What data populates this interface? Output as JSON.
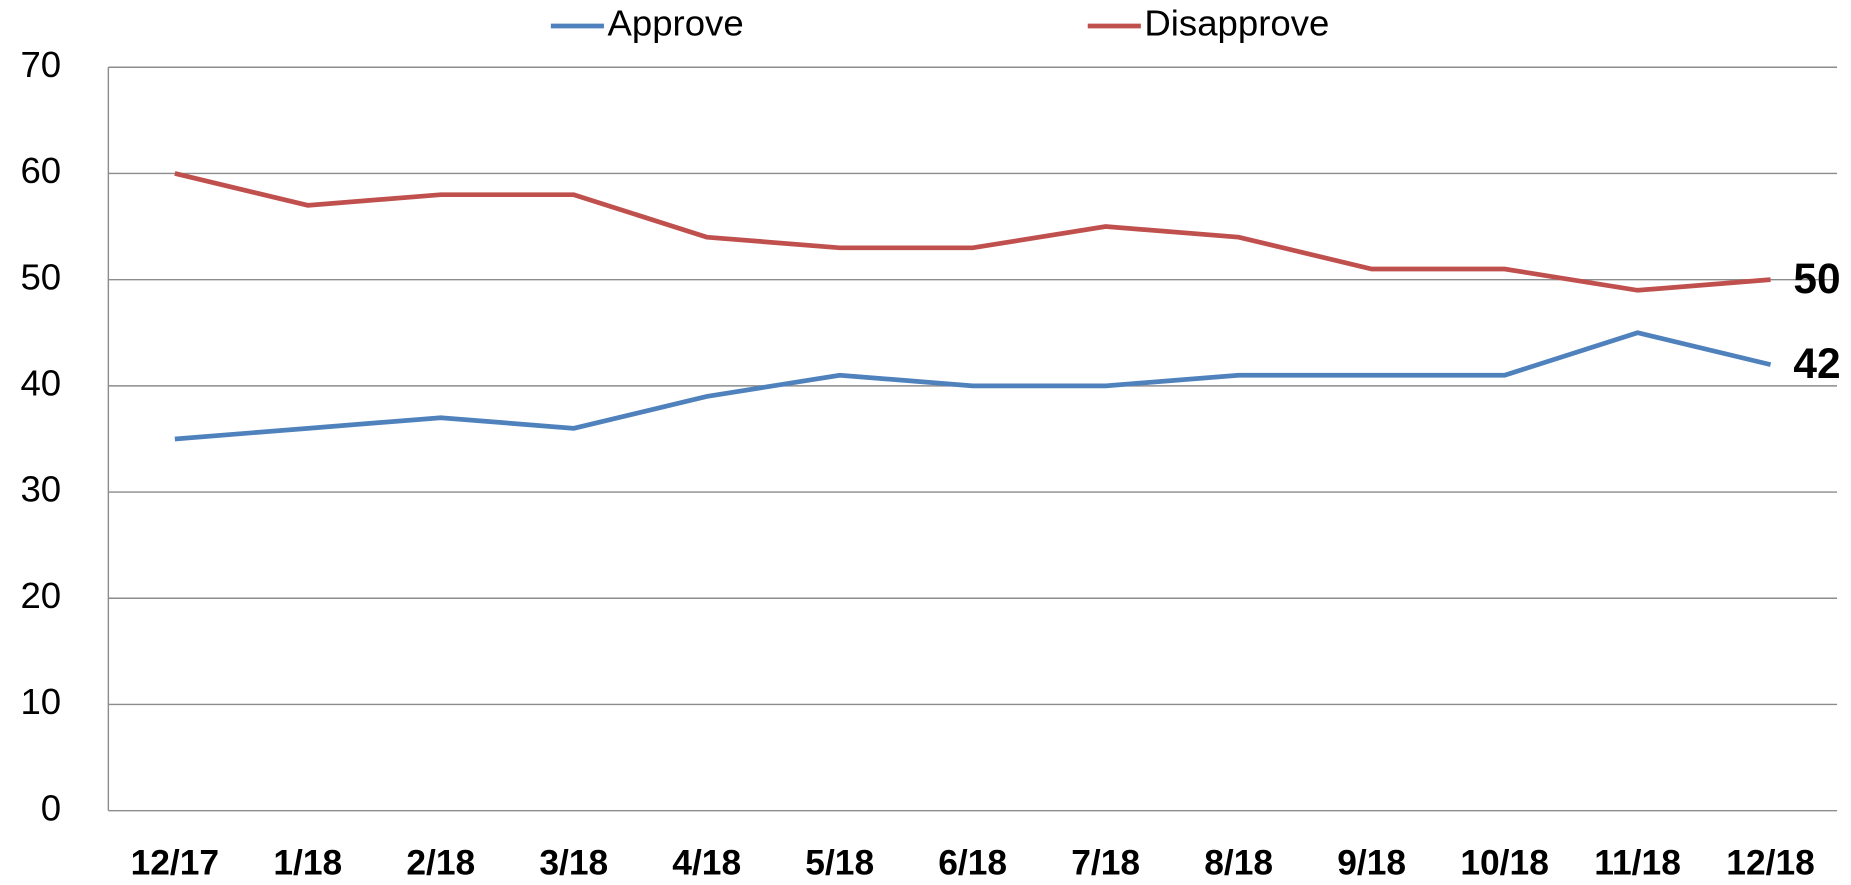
{
  "chart_data": {
    "type": "line",
    "categories": [
      "12/17",
      "1/18",
      "2/18",
      "3/18",
      "4/18",
      "5/18",
      "6/18",
      "7/18",
      "8/18",
      "9/18",
      "10/18",
      "11/18",
      "12/18"
    ],
    "series": [
      {
        "name": "Approve",
        "color": "#4f81bd",
        "values": [
          35,
          36,
          37,
          36,
          39,
          41,
          40,
          40,
          41,
          41,
          41,
          45,
          42
        ]
      },
      {
        "name": "Disapprove",
        "color": "#c0504d",
        "values": [
          60,
          57,
          58,
          58,
          54,
          53,
          53,
          55,
          54,
          51,
          51,
          49,
          50
        ]
      }
    ],
    "ylim": [
      0,
      70
    ],
    "yticks": [
      0,
      10,
      20,
      30,
      40,
      50,
      60,
      70
    ],
    "grid": true,
    "legend": "top"
  }
}
